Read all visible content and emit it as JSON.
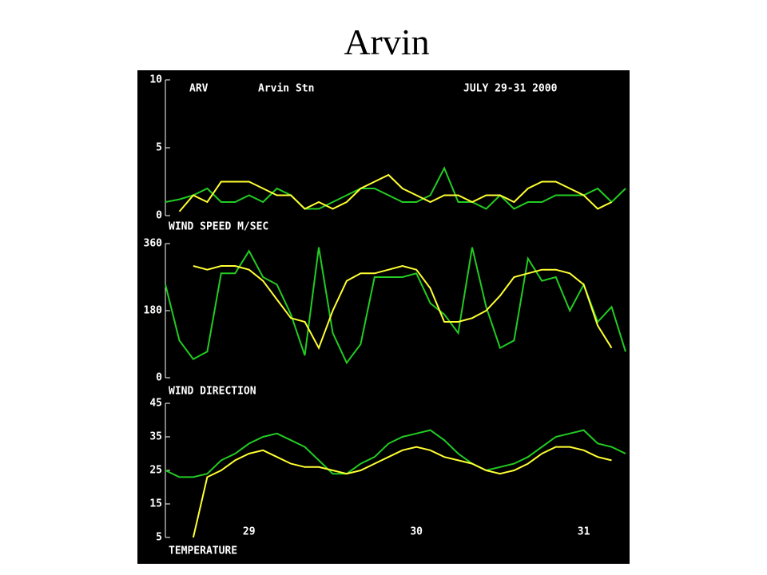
{
  "title": "Arvin",
  "header": {
    "station_code": "ARV",
    "station_name": "Arvin Stn",
    "date": "JULY 29-31 2000"
  },
  "chart_data": [
    {
      "type": "line",
      "label": "WIND SPEED M/SEC",
      "ylim": [
        0,
        10
      ],
      "yticks": [
        0,
        5,
        10
      ],
      "series": [
        {
          "color": "#22cc22",
          "values": [
            1,
            1.2,
            1.5,
            2,
            1,
            1,
            1.5,
            1,
            2,
            1.5,
            0.5,
            0.5,
            1,
            1.5,
            2,
            2,
            1.5,
            1,
            1,
            1.5,
            3.5,
            1,
            1,
            0.5,
            1.5,
            0.5,
            1,
            1,
            1.5,
            1.5,
            1.5,
            2,
            1,
            2
          ]
        },
        {
          "color": "#ffff33",
          "values": [
            null,
            0.3,
            1.5,
            1,
            2.5,
            2.5,
            2.5,
            2,
            1.5,
            1.5,
            0.5,
            1,
            0.5,
            1,
            2,
            2.5,
            3,
            2,
            1.5,
            1,
            1.5,
            1.5,
            1,
            1.5,
            1.5,
            1,
            2,
            2.5,
            2.5,
            2,
            1.5,
            0.5,
            1,
            null
          ]
        }
      ]
    },
    {
      "type": "line",
      "label": "WIND DIRECTION",
      "ylim": [
        0,
        360
      ],
      "yticks": [
        0,
        180,
        360
      ],
      "series": [
        {
          "color": "#22cc22",
          "values": [
            250,
            100,
            50,
            70,
            280,
            280,
            340,
            270,
            250,
            170,
            60,
            350,
            120,
            40,
            90,
            270,
            270,
            270,
            280,
            200,
            170,
            120,
            350,
            190,
            80,
            100,
            320,
            260,
            270,
            180,
            250,
            150,
            190,
            70
          ]
        },
        {
          "color": "#ffff33",
          "values": [
            null,
            null,
            300,
            290,
            300,
            300,
            290,
            260,
            210,
            160,
            150,
            80,
            180,
            260,
            280,
            280,
            290,
            300,
            290,
            240,
            150,
            150,
            160,
            180,
            220,
            270,
            280,
            290,
            290,
            280,
            250,
            140,
            80,
            null
          ]
        }
      ]
    },
    {
      "type": "line",
      "label": "TEMPERATURE",
      "ylim": [
        5,
        45
      ],
      "yticks": [
        5,
        15,
        25,
        35,
        45
      ],
      "categories": [
        null,
        null,
        null,
        null,
        null,
        null,
        "29",
        null,
        null,
        null,
        null,
        null,
        null,
        null,
        null,
        null,
        null,
        null,
        "30",
        null,
        null,
        null,
        null,
        null,
        null,
        null,
        null,
        null,
        null,
        null,
        "31",
        null,
        null,
        null
      ],
      "series": [
        {
          "color": "#22cc22",
          "values": [
            25,
            23,
            23,
            24,
            28,
            30,
            33,
            35,
            36,
            34,
            32,
            28,
            24,
            24,
            27,
            29,
            33,
            35,
            36,
            37,
            34,
            30,
            27,
            25,
            26,
            27,
            29,
            32,
            35,
            36,
            37,
            33,
            32,
            30
          ]
        },
        {
          "color": "#ffff33",
          "values": [
            null,
            null,
            5,
            23,
            25,
            28,
            30,
            31,
            29,
            27,
            26,
            26,
            25,
            24,
            25,
            27,
            29,
            31,
            32,
            31,
            29,
            28,
            27,
            25,
            24,
            25,
            27,
            30,
            32,
            32,
            31,
            29,
            28,
            null
          ]
        }
      ]
    }
  ]
}
